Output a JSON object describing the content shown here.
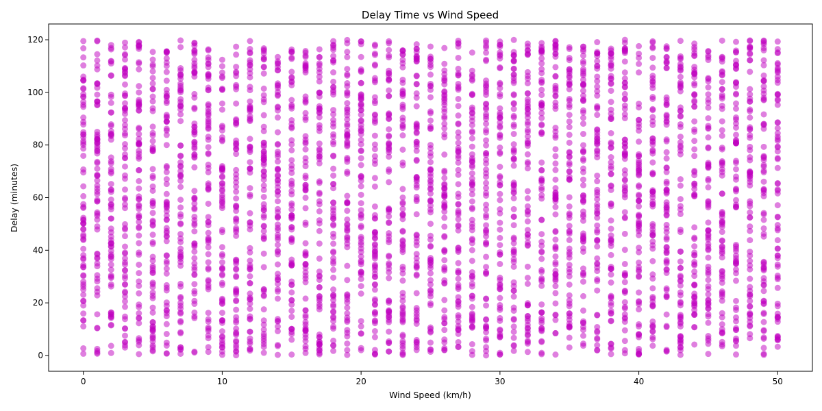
{
  "chart_data": {
    "type": "scatter",
    "title": "Delay Time vs Wind Speed",
    "xlabel": "Wind Speed (km/h)",
    "ylabel": "Delay (minutes)",
    "xlim": [
      -2.5,
      52.5
    ],
    "ylim": [
      -6,
      126
    ],
    "xticks": [
      0,
      10,
      20,
      30,
      40,
      50
    ],
    "yticks": [
      0,
      20,
      40,
      60,
      80,
      100,
      120
    ],
    "grid": false,
    "marker_color": "#BF00BF",
    "marker_alpha": 0.5,
    "x_values": [
      0,
      1,
      2,
      3,
      4,
      5,
      6,
      7,
      8,
      9,
      10,
      11,
      12,
      13,
      14,
      15,
      16,
      17,
      18,
      19,
      20,
      21,
      22,
      23,
      24,
      25,
      26,
      27,
      28,
      29,
      30,
      31,
      32,
      33,
      34,
      35,
      36,
      37,
      38,
      39,
      40,
      41,
      42,
      43,
      44,
      45,
      46,
      47,
      48,
      49,
      50
    ],
    "y_range": [
      0,
      120
    ],
    "points_per_x": 70
  }
}
